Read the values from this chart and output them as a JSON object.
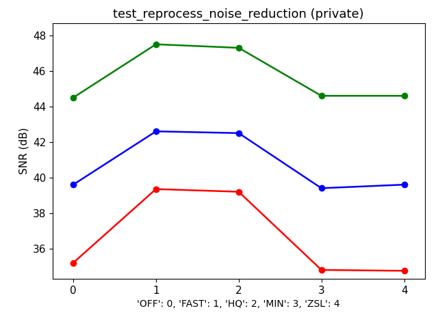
{
  "title": "test_reprocess_noise_reduction (private)",
  "xlabel": "'OFF': 0, 'FAST': 1, 'HQ': 2, 'MIN': 3, 'ZSL': 4",
  "ylabel": "SNR (dB)",
  "x": [
    0,
    1,
    2,
    3,
    4
  ],
  "green_y": [
    44.5,
    47.5,
    47.3,
    44.6,
    44.6
  ],
  "blue_y": [
    39.6,
    42.6,
    42.5,
    39.4,
    39.6
  ],
  "red_y": [
    35.2,
    39.35,
    39.2,
    34.8,
    34.75
  ],
  "green_color": "#008000",
  "blue_color": "#0000FF",
  "red_color": "#FF0000",
  "ylim_min": 34.3,
  "ylim_max": 48.7,
  "xlim_min": -0.25,
  "xlim_max": 4.25,
  "yticks": [
    36,
    38,
    40,
    42,
    44,
    46,
    48
  ],
  "xticks": [
    0,
    1,
    2,
    3,
    4
  ],
  "marker": "o",
  "markersize": 6,
  "linewidth": 1.8,
  "title_fontsize": 13,
  "label_fontsize": 11,
  "tick_fontsize": 11,
  "xlabel_fontsize": 10,
  "background_color": "#ffffff"
}
